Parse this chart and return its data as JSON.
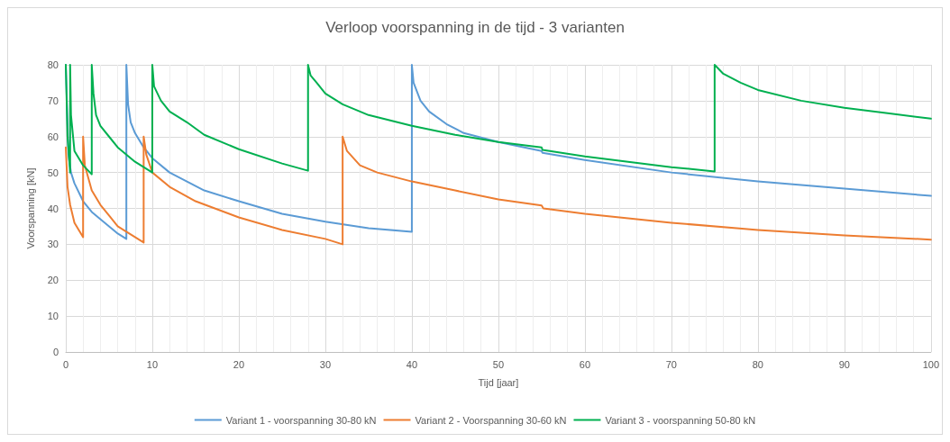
{
  "chart_data": {
    "type": "line",
    "title": "Verloop voorspanning in de tijd - 3 varianten",
    "xlabel": "Tijd [jaar]",
    "ylabel": "Voorspanning [kN]",
    "xlim": [
      0,
      100
    ],
    "xticks": [
      0,
      10,
      20,
      30,
      40,
      50,
      60,
      70,
      80,
      90,
      100
    ],
    "ylim": [
      0,
      80
    ],
    "yticks": [
      0,
      10,
      20,
      30,
      40,
      50,
      60,
      70,
      80
    ],
    "grid": true,
    "legend": "bottom",
    "marker": "none",
    "line_style": "solid",
    "series": [
      {
        "name": "Variant 1 - voorspanning 30-80 kN",
        "color": "#5b9bd5",
        "x": [
          0,
          0.3,
          0.6,
          1,
          2,
          3,
          4,
          5,
          6,
          7,
          7,
          7.2,
          7.5,
          8,
          9,
          10,
          12,
          14,
          16,
          20,
          25,
          30,
          35,
          40,
          40,
          40.2,
          41,
          42,
          44,
          46,
          50,
          55,
          55.1,
          60,
          70,
          80,
          90,
          100
        ],
        "values": [
          80,
          55,
          50,
          47,
          42,
          39,
          37,
          35,
          33,
          31.5,
          80,
          69,
          64,
          61,
          57,
          54,
          50,
          47.5,
          45,
          42,
          38.5,
          36.3,
          34.5,
          33.5,
          80,
          75,
          70,
          67,
          63.5,
          61,
          58.5,
          56,
          55.5,
          53.5,
          50,
          47.5,
          45.5,
          43.5
        ]
      },
      {
        "name": "Variant 2 - Voorspanning 30-60 kN",
        "color": "#ed7d31",
        "x": [
          0,
          0.2,
          0.5,
          1,
          1.5,
          2,
          2,
          2.2,
          3,
          4,
          5,
          6,
          7,
          8,
          9,
          9,
          9.3,
          10,
          12,
          15,
          20,
          25,
          30,
          32,
          32,
          32.5,
          34,
          36,
          40,
          45,
          50,
          55,
          55.2,
          60,
          70,
          80,
          90,
          100
        ],
        "values": [
          57,
          46,
          41,
          36,
          34,
          32,
          60,
          52,
          45,
          41,
          38,
          35,
          33.5,
          32,
          30.5,
          60,
          55,
          50,
          46,
          42,
          37.5,
          34,
          31.5,
          30,
          60,
          56,
          52,
          50,
          47.5,
          45,
          42.5,
          40.8,
          40,
          38.5,
          36,
          34,
          32.5,
          31.3
        ]
      },
      {
        "name": "Variant 3 - voorspanning 50-80 kN",
        "color": "#00b050",
        "x": [
          0,
          0.2,
          0.5,
          0.5,
          0.6,
          1,
          2,
          3,
          3,
          3.2,
          3.5,
          4,
          5,
          6,
          7,
          8,
          9,
          10,
          10,
          10.2,
          11,
          12,
          14,
          16,
          20,
          25,
          28,
          28,
          28.3,
          29,
          30,
          32,
          35,
          40,
          45,
          50,
          55,
          55.1,
          60,
          65,
          70,
          75,
          75,
          76,
          78,
          80,
          85,
          90,
          95,
          100
        ],
        "values": [
          80,
          60,
          50,
          80,
          66,
          56,
          52,
          49.5,
          80,
          72,
          66,
          63,
          60,
          57,
          55,
          53,
          51.5,
          50,
          80,
          74,
          70,
          67,
          64,
          60.5,
          56.5,
          52.5,
          50.5,
          80,
          77,
          75,
          72,
          69,
          66,
          63,
          60.5,
          58.5,
          57,
          56.3,
          54.5,
          53,
          51.5,
          50.3,
          80,
          77.5,
          75,
          73,
          70,
          68,
          66.5,
          65
        ]
      }
    ]
  }
}
